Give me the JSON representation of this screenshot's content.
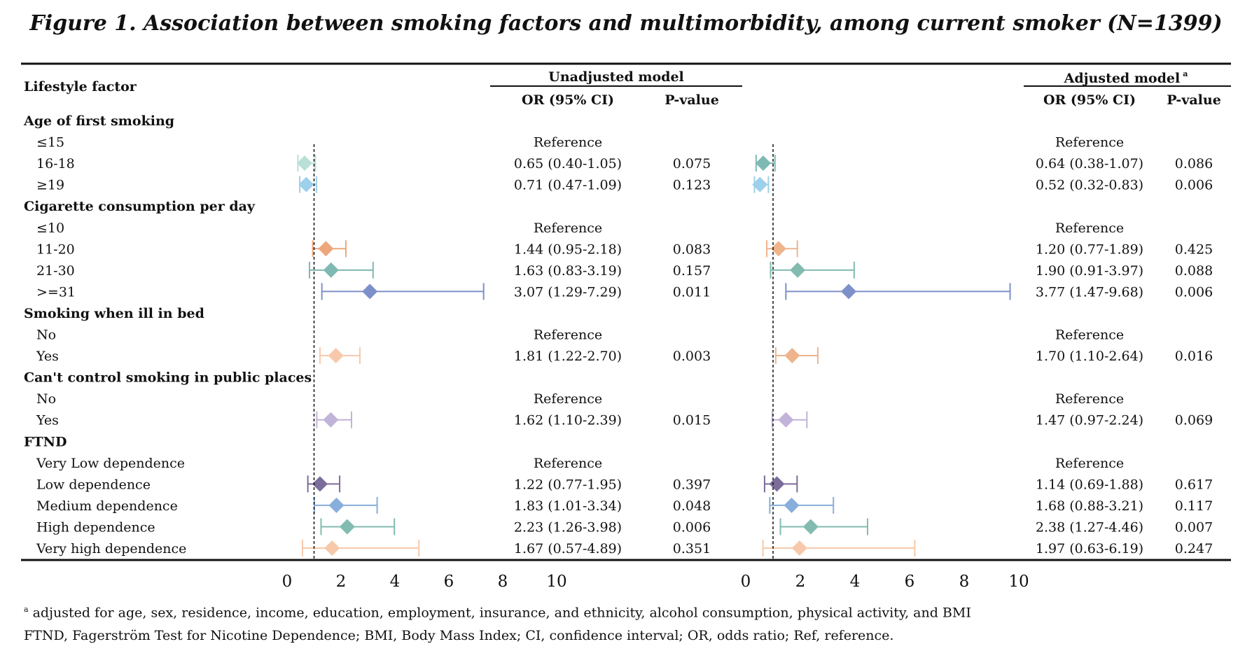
{
  "title": "Figure 1. Association between smoking factors and multimorbidity, among current smoker (N=1399)",
  "headers": {
    "lifestyle_factor": "Lifestyle factor",
    "unadjusted_model": "Unadjusted model",
    "adjusted_model": "Adjusted model",
    "adjusted_model_sup": "a",
    "or_ci": "OR (95% CI)",
    "p_value": "P-value"
  },
  "footnotes": {
    "sup": "a",
    "line1": "adjusted for age, sex, residence, income, education, employment, insurance, and ethnicity, alcohol consumption, physical activity, and BMI",
    "line2": "FTND, Fagerström Test for Nicotine Dependence; BMI, Body Mass Index; CI, confidence interval; OR, odds ratio; Ref, reference."
  },
  "colors": {
    "light_teal": "#b9dfd6",
    "light_blue": "#9dd0ea",
    "orange": "#eea77c",
    "teal": "#7fb9b3",
    "blue_purple": "#7e90c9",
    "light_orange": "#f7c9aa",
    "lavender": "#c2b3d8",
    "dark_purple": "#7b6c9a",
    "blue": "#88aedb",
    "green_teal": "#82bbb0",
    "peach": "#eeb48c"
  },
  "chart_data": {
    "type": "forest",
    "x_ticks": [
      0,
      2,
      4,
      6,
      8,
      10
    ],
    "xlim": [
      0,
      10
    ],
    "reference_line": 1,
    "panels": [
      "Unadjusted model",
      "Adjusted model"
    ],
    "rows": [
      {
        "label": "Age of first smoking",
        "header": true
      },
      {
        "label": "≤15",
        "unadj_text": "Reference",
        "adj_text": "Reference"
      },
      {
        "label": "16-18",
        "unadj_text": "0.65 (0.40-1.05)",
        "unadj_p": "0.075",
        "adj_text": "0.64 (0.38-1.07)",
        "adj_p": "0.086",
        "unadj": {
          "or": 0.65,
          "lo": 0.4,
          "hi": 1.05
        },
        "adj": {
          "or": 0.64,
          "lo": 0.38,
          "hi": 1.07
        },
        "unadj_color": "#b9dfd6",
        "adj_color": "#7fb9b3"
      },
      {
        "label": "≥19",
        "unadj_text": "0.71 (0.47-1.09)",
        "unadj_p": "0.123",
        "adj_text": "0.52 (0.32-0.83)",
        "adj_p": "0.006",
        "unadj": {
          "or": 0.71,
          "lo": 0.47,
          "hi": 1.09
        },
        "adj": {
          "or": 0.52,
          "lo": 0.32,
          "hi": 0.83
        },
        "unadj_color": "#9dd0ea",
        "adj_color": "#9dd0ea"
      },
      {
        "label": "Cigarette consumption per day",
        "header": true
      },
      {
        "label": "≤10",
        "unadj_text": "Reference",
        "adj_text": "Reference"
      },
      {
        "label": "11-20",
        "unadj_text": "1.44 (0.95-2.18)",
        "unadj_p": "0.083",
        "adj_text": "1.20 (0.77-1.89)",
        "adj_p": "0.425",
        "unadj": {
          "or": 1.44,
          "lo": 0.95,
          "hi": 2.18
        },
        "adj": {
          "or": 1.2,
          "lo": 0.77,
          "hi": 1.89
        },
        "unadj_color": "#eea77c",
        "adj_color": "#eeb48c"
      },
      {
        "label": "21-30",
        "unadj_text": "1.63 (0.83-3.19)",
        "unadj_p": "0.157",
        "adj_text": "1.90 (0.91-3.97)",
        "adj_p": "0.088",
        "unadj": {
          "or": 1.63,
          "lo": 0.83,
          "hi": 3.19
        },
        "adj": {
          "or": 1.9,
          "lo": 0.91,
          "hi": 3.97
        },
        "unadj_color": "#7fb9b3",
        "adj_color": "#82bbb0"
      },
      {
        "label": ">=31",
        "unadj_text": "3.07 (1.29-7.29)",
        "unadj_p": "0.011",
        "adj_text": "3.77 (1.47-9.68)",
        "adj_p": "0.006",
        "unadj": {
          "or": 3.07,
          "lo": 1.29,
          "hi": 7.29
        },
        "adj": {
          "or": 3.77,
          "lo": 1.47,
          "hi": 9.68
        },
        "unadj_color": "#7e90c9",
        "adj_color": "#7e90c9"
      },
      {
        "label": "Smoking when ill in bed",
        "header": true
      },
      {
        "label": "No",
        "unadj_text": "Reference",
        "adj_text": "Reference"
      },
      {
        "label": "Yes",
        "unadj_text": "1.81 (1.22-2.70)",
        "unadj_p": "0.003",
        "adj_text": "1.70 (1.10-2.64)",
        "adj_p": "0.016",
        "unadj": {
          "or": 1.81,
          "lo": 1.22,
          "hi": 2.7
        },
        "adj": {
          "or": 1.7,
          "lo": 1.1,
          "hi": 2.64
        },
        "unadj_color": "#f7c9aa",
        "adj_color": "#eeb48c"
      },
      {
        "label": "Can't control smoking in public places",
        "header": true
      },
      {
        "label": "No",
        "unadj_text": "Reference",
        "adj_text": "Reference"
      },
      {
        "label": "Yes",
        "unadj_text": "1.62 (1.10-2.39)",
        "unadj_p": "0.015",
        "adj_text": "1.47 (0.97-2.24)",
        "adj_p": "0.069",
        "unadj": {
          "or": 1.62,
          "lo": 1.1,
          "hi": 2.39
        },
        "adj": {
          "or": 1.47,
          "lo": 0.97,
          "hi": 2.24
        },
        "unadj_color": "#c2b3d8",
        "adj_color": "#c2b3d8"
      },
      {
        "label": "FTND",
        "header": true
      },
      {
        "label": "Very Low dependence",
        "unadj_text": "Reference",
        "adj_text": "Reference"
      },
      {
        "label": "Low dependence",
        "unadj_text": "1.22 (0.77-1.95)",
        "unadj_p": "0.397",
        "adj_text": "1.14 (0.69-1.88)",
        "adj_p": "0.617",
        "unadj": {
          "or": 1.22,
          "lo": 0.77,
          "hi": 1.95
        },
        "adj": {
          "or": 1.14,
          "lo": 0.69,
          "hi": 1.88
        },
        "unadj_color": "#7b6c9a",
        "adj_color": "#7b6c9a"
      },
      {
        "label": "Medium dependence",
        "unadj_text": "1.83 (1.01-3.34)",
        "unadj_p": "0.048",
        "adj_text": "1.68 (0.88-3.21)",
        "adj_p": "0.117",
        "unadj": {
          "or": 1.83,
          "lo": 1.01,
          "hi": 3.34
        },
        "adj": {
          "or": 1.68,
          "lo": 0.88,
          "hi": 3.21
        },
        "unadj_color": "#88aedb",
        "adj_color": "#88aedb"
      },
      {
        "label": "High dependence",
        "unadj_text": "2.23 (1.26-3.98)",
        "unadj_p": "0.006",
        "adj_text": "2.38 (1.27-4.46)",
        "adj_p": "0.007",
        "unadj": {
          "or": 2.23,
          "lo": 1.26,
          "hi": 3.98
        },
        "adj": {
          "or": 2.38,
          "lo": 1.27,
          "hi": 4.46
        },
        "unadj_color": "#82bbb0",
        "adj_color": "#82bbb0"
      },
      {
        "label": "Very high dependence",
        "unadj_text": "1.67 (0.57-4.89)",
        "unadj_p": "0.351",
        "adj_text": "1.97 (0.63-6.19)",
        "adj_p": "0.247",
        "unadj": {
          "or": 1.67,
          "lo": 0.57,
          "hi": 4.89
        },
        "adj": {
          "or": 1.97,
          "lo": 0.63,
          "hi": 6.19
        },
        "unadj_color": "#f7c9aa",
        "adj_color": "#f7c9aa"
      }
    ]
  }
}
